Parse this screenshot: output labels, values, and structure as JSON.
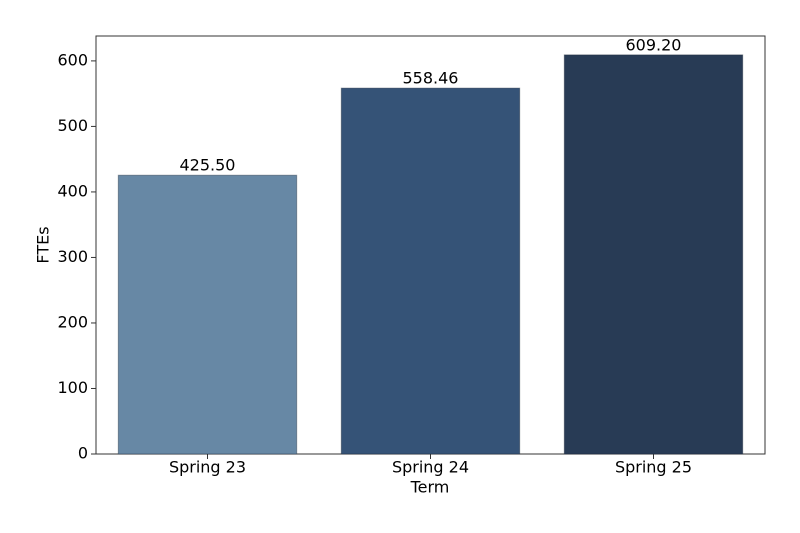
{
  "chart_data": {
    "type": "bar",
    "categories": [
      "Spring 23",
      "Spring 24",
      "Spring 25"
    ],
    "values": [
      425.5,
      558.46,
      609.2
    ],
    "value_labels": [
      "425.50",
      "558.46",
      "609.20"
    ],
    "colors": [
      "#6788a5",
      "#355377",
      "#283b55"
    ],
    "xlabel": "Term",
    "ylabel": "FTEs",
    "ylim": [
      0,
      638
    ],
    "yticks": [
      0,
      100,
      200,
      300,
      400,
      500,
      600
    ],
    "grid": false
  }
}
